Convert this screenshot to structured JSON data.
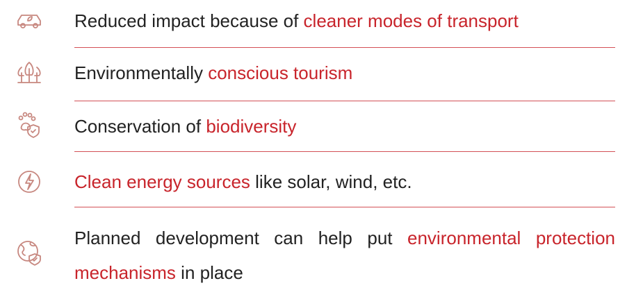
{
  "items": [
    {
      "segments": [
        {
          "text": "Reduced impact because of ",
          "color": "#222222"
        },
        {
          "text": "cleaner modes of transport",
          "color": "#c8242b"
        }
      ]
    },
    {
      "segments": [
        {
          "text": "Environmentally ",
          "color": "#222222"
        },
        {
          "text": "conscious tourism",
          "color": "#c8242b"
        }
      ]
    },
    {
      "segments": [
        {
          "text": "Conservation of ",
          "color": "#222222"
        },
        {
          "text": "biodiversity",
          "color": "#c8242b"
        }
      ]
    },
    {
      "segments": [
        {
          "text": "Clean energy sources",
          "color": "#c8242b"
        },
        {
          "text": " like solar, wind, etc.",
          "color": "#222222"
        }
      ]
    },
    {
      "segments": [
        {
          "text": "Planned development can help put ",
          "color": "#222222"
        },
        {
          "text": "environmental protection mechanisms",
          "color": "#c8242b"
        },
        {
          "text": " in place",
          "color": "#222222"
        }
      ]
    }
  ]
}
